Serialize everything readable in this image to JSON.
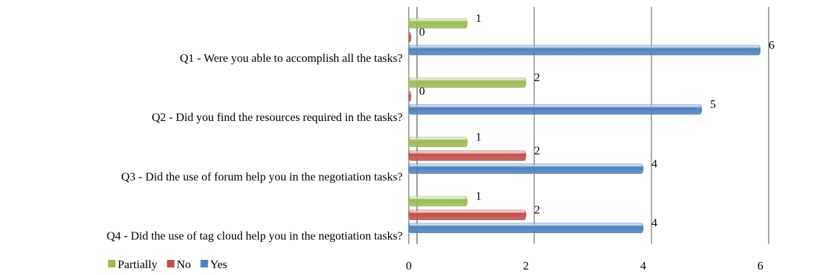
{
  "chart_data": {
    "type": "bar",
    "orientation": "horizontal",
    "categories": [
      "Q1 - Were you able to accomplish all the tasks?",
      "Q2 - Did you find the resources required in the tasks?",
      "Q3 - Did the use of forum help you in the negotiation tasks?",
      "Q4 - Did the use of tag cloud help you in the negotiation tasks?"
    ],
    "series": [
      {
        "name": "Partially",
        "color": "#9bbb59",
        "values": [
          1,
          2,
          1,
          1
        ]
      },
      {
        "name": "No",
        "color": "#c0504d",
        "values": [
          0,
          0,
          2,
          2
        ]
      },
      {
        "name": "Yes",
        "color": "#4f81bd",
        "values": [
          6,
          5,
          4,
          4
        ]
      }
    ],
    "xlim": [
      0,
      7
    ],
    "xticks": [
      0,
      2,
      4,
      6
    ],
    "grid": true,
    "legend": "bottom-left"
  }
}
